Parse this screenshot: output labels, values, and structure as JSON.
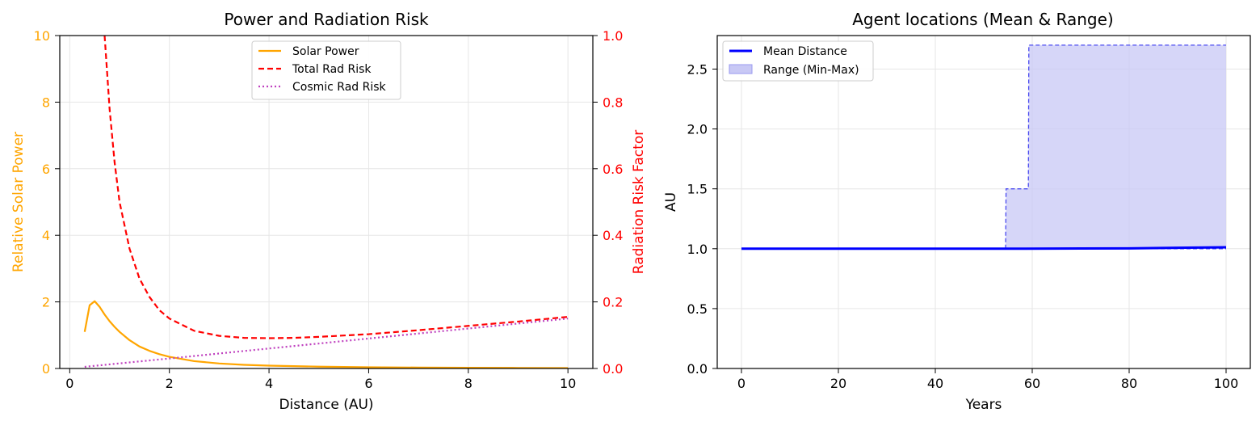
{
  "colors": {
    "solar": "#ffa500",
    "total_rad": "#ff0000",
    "cosmic_rad": "#bf40bf",
    "mean": "#0000ff",
    "range_fill": "#c8c8f5",
    "range_edge": "#4a4af0",
    "grid": "#e6e6e6",
    "axis": "#000000"
  },
  "chart_data": [
    {
      "type": "line",
      "title": "Power and Radiation Risk",
      "xlabel": "Distance (AU)",
      "ylabel": "Relative Solar Power",
      "ylabel_right": "Radiation Risk Factor",
      "xlim": [
        -0.2,
        10.5
      ],
      "ylim": [
        0,
        10
      ],
      "ylim_right": [
        0,
        1
      ],
      "x_ticks": [
        0,
        2,
        4,
        6,
        8,
        10
      ],
      "y_ticks": [
        0,
        2,
        4,
        6,
        8,
        10
      ],
      "y_ticks_right": [
        0.0,
        0.2,
        0.4,
        0.6,
        0.8,
        1.0
      ],
      "grid": true,
      "legend_position": "top-center",
      "series": [
        {
          "name": "Solar Power",
          "axis": "left",
          "style": "solid",
          "points": [
            [
              0.3,
              1.1
            ],
            [
              0.4,
              1.9
            ],
            [
              0.5,
              2.02
            ],
            [
              0.6,
              1.85
            ],
            [
              0.7,
              1.62
            ],
            [
              0.8,
              1.42
            ],
            [
              0.9,
              1.25
            ],
            [
              1.0,
              1.1
            ],
            [
              1.2,
              0.85
            ],
            [
              1.4,
              0.66
            ],
            [
              1.6,
              0.53
            ],
            [
              1.8,
              0.43
            ],
            [
              2.0,
              0.35
            ],
            [
              2.5,
              0.22
            ],
            [
              3.0,
              0.15
            ],
            [
              3.5,
              0.11
            ],
            [
              4.0,
              0.085
            ],
            [
              5.0,
              0.055
            ],
            [
              6.0,
              0.038
            ],
            [
              7.0,
              0.028
            ],
            [
              8.0,
              0.021
            ],
            [
              9.0,
              0.017
            ],
            [
              10.0,
              0.014
            ]
          ]
        },
        {
          "name": "Total Rad Risk",
          "axis": "right",
          "style": "dashed",
          "points": [
            [
              0.7,
              1.0
            ],
            [
              0.8,
              0.78
            ],
            [
              0.9,
              0.62
            ],
            [
              1.0,
              0.5
            ],
            [
              1.2,
              0.36
            ],
            [
              1.4,
              0.27
            ],
            [
              1.6,
              0.215
            ],
            [
              1.8,
              0.175
            ],
            [
              2.0,
              0.15
            ],
            [
              2.5,
              0.113
            ],
            [
              3.0,
              0.098
            ],
            [
              3.5,
              0.092
            ],
            [
              4.0,
              0.091
            ],
            [
              4.5,
              0.092
            ],
            [
              5.0,
              0.095
            ],
            [
              6.0,
              0.103
            ],
            [
              7.0,
              0.115
            ],
            [
              8.0,
              0.128
            ],
            [
              9.0,
              0.141
            ],
            [
              10.0,
              0.155
            ]
          ]
        },
        {
          "name": "Cosmic Rad Risk",
          "axis": "right",
          "style": "dotted",
          "points": [
            [
              0.3,
              0.005
            ],
            [
              2.0,
              0.03
            ],
            [
              4.0,
              0.06
            ],
            [
              6.0,
              0.09
            ],
            [
              8.0,
              0.12
            ],
            [
              10.0,
              0.15
            ]
          ]
        }
      ]
    },
    {
      "type": "area",
      "title": "Agent locations (Mean & Range)",
      "xlabel": "Years",
      "ylabel": "AU",
      "xlim": [
        -5,
        105
      ],
      "ylim": [
        0,
        2.78
      ],
      "x_ticks": [
        0,
        20,
        40,
        60,
        80,
        100
      ],
      "y_ticks": [
        0.0,
        0.5,
        1.0,
        1.5,
        2.0,
        2.5
      ],
      "grid": true,
      "legend_position": "top-left",
      "series": [
        {
          "name": "Mean Distance",
          "style": "solid",
          "points": [
            [
              0,
              1.0
            ],
            [
              20,
              1.0
            ],
            [
              40,
              1.0
            ],
            [
              55,
              1.0
            ],
            [
              70,
              1.002
            ],
            [
              80,
              1.003
            ],
            [
              90,
              1.008
            ],
            [
              100,
              1.012
            ]
          ]
        },
        {
          "name": "Range (Min-Max)",
          "style": "fill",
          "min_points": [
            [
              54.5,
              1.0
            ],
            [
              100,
              1.0
            ]
          ],
          "max_points": [
            [
              54.5,
              1.0
            ],
            [
              54.6,
              1.5
            ],
            [
              59.2,
              1.5
            ],
            [
              59.3,
              2.7
            ],
            [
              100,
              2.7
            ]
          ]
        }
      ]
    }
  ]
}
